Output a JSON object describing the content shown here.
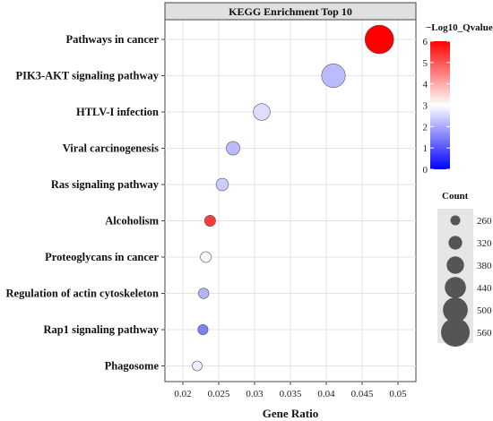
{
  "chart_data": {
    "type": "scatter",
    "title": "KEGG Enrichment Top 10",
    "xlabel": "Gene Ratio",
    "ylabel": "",
    "xlim": [
      0.0175,
      0.0525
    ],
    "xticks": [
      "0.02",
      "0.025",
      "0.03",
      "0.035",
      "0.04",
      "0.045",
      "0.05"
    ],
    "grid": true,
    "categories": [
      "Pathways in cancer",
      "PIK3-AKT signaling pathway",
      "HTLV-I infection",
      "Viral carcinogenesis",
      "Ras signaling pathway",
      "Alcoholism",
      "Proteoglycans in cancer",
      "Regulation of actin cytoskeleton",
      "Rap1 signaling pathway",
      "Phagosome"
    ],
    "points": [
      {
        "category": "Pathways in cancer",
        "x": 0.0474,
        "count": 560,
        "qvalue": 6.0
      },
      {
        "category": "PIK3-AKT signaling pathway",
        "x": 0.041,
        "count": 480,
        "qvalue": 2.2
      },
      {
        "category": "HTLV-I infection",
        "x": 0.031,
        "count": 370,
        "qvalue": 2.6
      },
      {
        "category": "Viral carcinogenesis",
        "x": 0.027,
        "count": 320,
        "qvalue": 2.2
      },
      {
        "category": "Ras signaling pathway",
        "x": 0.0255,
        "count": 300,
        "qvalue": 2.4
      },
      {
        "category": "Alcoholism",
        "x": 0.0238,
        "count": 280,
        "qvalue": 5.3
      },
      {
        "category": "Proteoglycans in cancer",
        "x": 0.0232,
        "count": 275,
        "qvalue": 2.9
      },
      {
        "category": "Regulation of actin cytoskeleton",
        "x": 0.0229,
        "count": 270,
        "qvalue": 2.1
      },
      {
        "category": "Rap1 signaling pathway",
        "x": 0.0228,
        "count": 265,
        "qvalue": 1.5
      },
      {
        "category": "Phagosome",
        "x": 0.022,
        "count": 260,
        "qvalue": 2.8
      }
    ],
    "color_legend": {
      "title": "−Log10_Qvalue",
      "min": 0,
      "max": 6,
      "mid": 3,
      "ticks": [
        "0",
        "1",
        "2",
        "3",
        "4",
        "5",
        "6"
      ],
      "low_color": "#0000ff",
      "mid_color": "#ffffff",
      "high_color": "#ff0000"
    },
    "size_legend": {
      "title": "Count",
      "values": [
        "260",
        "320",
        "380",
        "440",
        "500",
        "560"
      ]
    },
    "legend_position": "right"
  }
}
